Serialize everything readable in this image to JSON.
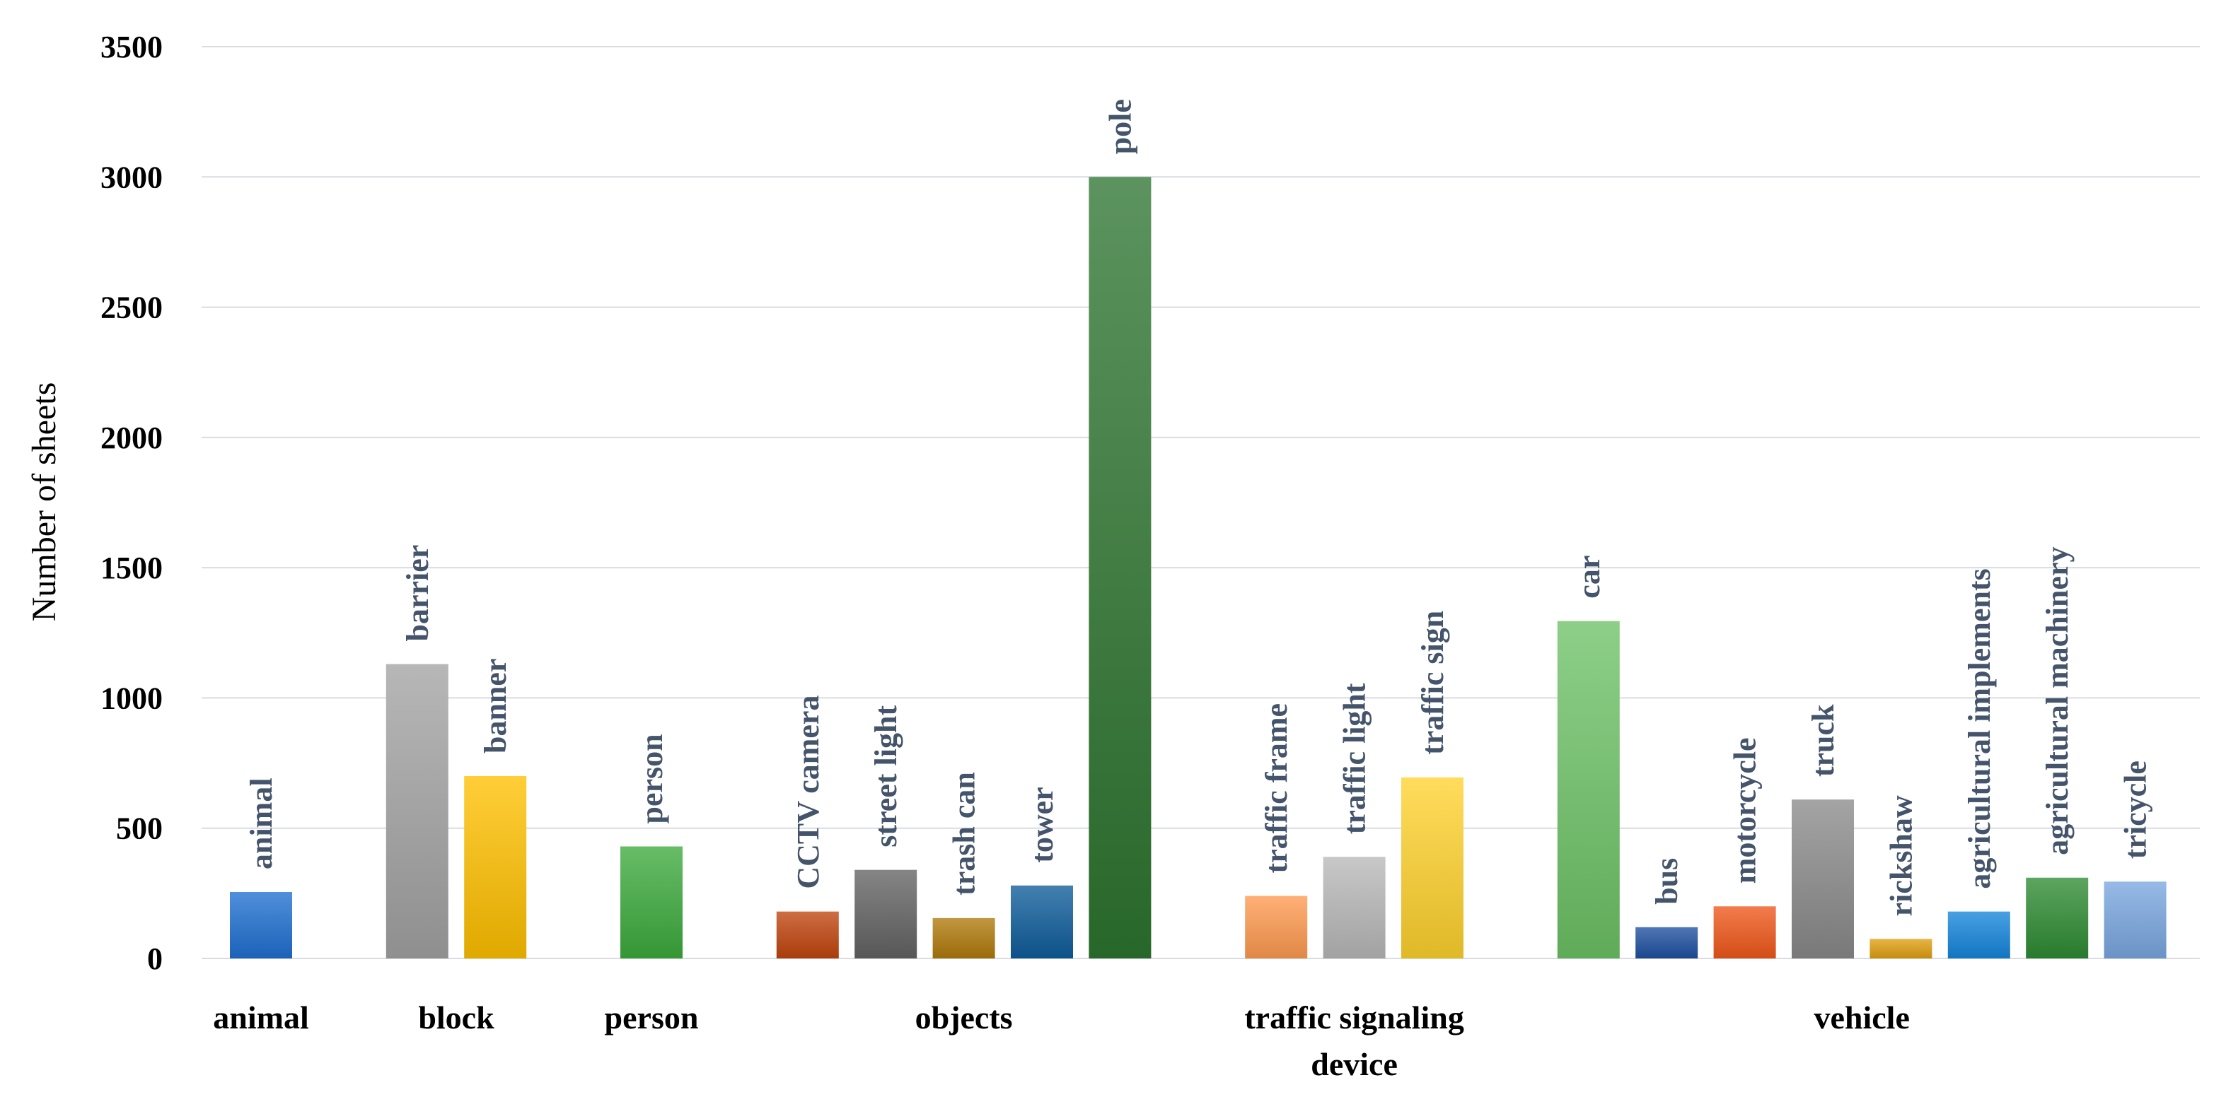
{
  "chart_data": {
    "type": "bar",
    "title": "",
    "xlabel": "",
    "ylabel": "Number of sheets",
    "ylim": [
      0,
      3500
    ],
    "yticks": [
      0,
      500,
      1000,
      1500,
      2000,
      2500,
      3000,
      3500
    ],
    "grid": true,
    "legend": "none",
    "groups": [
      {
        "name": "animal",
        "bars": [
          {
            "label": "animal",
            "value": 255,
            "color": "#1F6FD1"
          }
        ]
      },
      {
        "name": "block",
        "bars": [
          {
            "label": "barrier",
            "value": 1130,
            "color": "#A3A3A3"
          },
          {
            "label": "banner",
            "value": 700,
            "color": "#FFC000"
          }
        ]
      },
      {
        "name": "person",
        "bars": [
          {
            "label": "person",
            "value": 430,
            "color": "#3CAA3C"
          }
        ]
      },
      {
        "name": "objects",
        "bars": [
          {
            "label": "CCTV camera",
            "value": 180,
            "color": "#C0440E"
          },
          {
            "label": "street light",
            "value": 340,
            "color": "#636363"
          },
          {
            "label": "trash can",
            "value": 155,
            "color": "#B07A0A"
          },
          {
            "label": "tower",
            "value": 280,
            "color": "#0E5C9A"
          },
          {
            "label": "pole",
            "value": 3000,
            "color": "#2E7530"
          }
        ]
      },
      {
        "name": "traffic signaling device",
        "bars": [
          {
            "label": "traffic frame",
            "value": 240,
            "color": "#FF9A50"
          },
          {
            "label": "traffic light",
            "value": 390,
            "color": "#B8B8B8"
          },
          {
            "label": "traffic sign",
            "value": 695,
            "color": "#FFD22E"
          }
        ]
      },
      {
        "name": "vehicle",
        "bars": [
          {
            "label": "car",
            "value": 1295,
            "color": "#6DC266"
          },
          {
            "label": "bus",
            "value": 120,
            "color": "#1E4FA0"
          },
          {
            "label": "motorcycle",
            "value": 200,
            "color": "#F0571A"
          },
          {
            "label": "truck",
            "value": 610,
            "color": "#8A8A8A"
          },
          {
            "label": "rickshaw",
            "value": 75,
            "color": "#E0A010"
          },
          {
            "label": "agricultural implements",
            "value": 180,
            "color": "#1585DB"
          },
          {
            "label": "agricultural machinery",
            "value": 310,
            "color": "#2E8B33"
          },
          {
            "label": "tricycle",
            "value": 295,
            "color": "#7AA7E0"
          }
        ]
      }
    ]
  }
}
